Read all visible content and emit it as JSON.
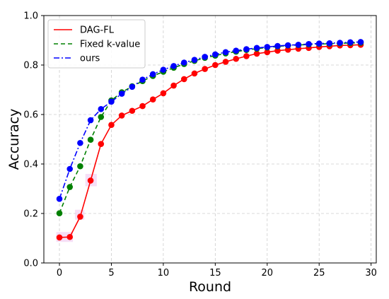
{
  "chart_data": {
    "type": "line",
    "title": "",
    "xlabel": "Round",
    "ylabel": "Accuracy",
    "xlim": [
      -1.5,
      30.5
    ],
    "ylim": [
      0.0,
      1.0
    ],
    "xticks": [
      0,
      5,
      10,
      15,
      20,
      25,
      30
    ],
    "yticks": [
      0.0,
      0.2,
      0.4,
      0.6,
      0.8,
      1.0
    ],
    "xtick_labels": [
      "0",
      "5",
      "10",
      "15",
      "20",
      "25",
      "30"
    ],
    "ytick_labels": [
      "0.0",
      "0.2",
      "0.4",
      "0.6",
      "0.8",
      "1.0"
    ],
    "grid": true,
    "legend_position": "upper-left",
    "x": [
      0,
      1,
      2,
      3,
      4,
      5,
      6,
      7,
      8,
      9,
      10,
      11,
      12,
      13,
      14,
      15,
      16,
      17,
      18,
      19,
      20,
      21,
      22,
      23,
      24,
      25,
      26,
      27,
      28,
      29
    ],
    "series": [
      {
        "name": "DAG-FL",
        "color": "#ff0000",
        "line_style": "solid",
        "values": [
          0.103,
          0.105,
          0.187,
          0.333,
          0.481,
          0.558,
          0.596,
          0.615,
          0.634,
          0.661,
          0.686,
          0.717,
          0.743,
          0.766,
          0.784,
          0.8,
          0.813,
          0.825,
          0.836,
          0.846,
          0.852,
          0.858,
          0.862,
          0.866,
          0.869,
          0.873,
          0.876,
          0.879,
          0.88,
          0.882
        ]
      },
      {
        "name": "Fixed k-value",
        "color": "#008000",
        "line_style": "dashed",
        "values": [
          0.201,
          0.307,
          0.391,
          0.498,
          0.59,
          0.657,
          0.69,
          0.714,
          0.735,
          0.756,
          0.773,
          0.789,
          0.804,
          0.817,
          0.829,
          0.838,
          0.847,
          0.854,
          0.861,
          0.866,
          0.871,
          0.875,
          0.879,
          0.881,
          0.883,
          0.885,
          0.886,
          0.888,
          0.889,
          0.89
        ]
      },
      {
        "name": "ours",
        "color": "#0000ff",
        "line_style": "dashdot",
        "values": [
          0.259,
          0.38,
          0.485,
          0.577,
          0.622,
          0.652,
          0.684,
          0.712,
          0.741,
          0.763,
          0.781,
          0.796,
          0.81,
          0.821,
          0.833,
          0.843,
          0.852,
          0.858,
          0.864,
          0.869,
          0.873,
          0.877,
          0.88,
          0.882,
          0.885,
          0.887,
          0.888,
          0.89,
          0.892,
          0.893
        ]
      }
    ]
  }
}
